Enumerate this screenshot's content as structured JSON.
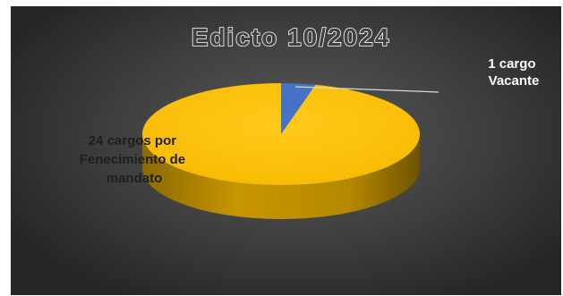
{
  "colors": {
    "background_dark": "#2b2b2b",
    "background_light": "#5a5a5a",
    "slice_major": "#ffc000",
    "slice_minor": "#4472c4",
    "title_fill": "#404040",
    "title_stroke": "#ffffff",
    "label_text": "#1e1e1e",
    "callout_text": "#ffffff"
  },
  "chart_data": {
    "type": "pie",
    "style": "3d",
    "title": "Edicto 10/2024",
    "slices": [
      {
        "label": "1 cargo Vacante",
        "label_lines": [
          "1 cargo",
          "Vacante"
        ],
        "value": 1,
        "color": "#4472c4"
      },
      {
        "label": "24 cargos por Fenecimiento de mandato",
        "label_lines": [
          "24 cargos por",
          "Fenecimiento de",
          "mandato"
        ],
        "value": 24,
        "color": "#ffc000"
      }
    ],
    "legend": "none"
  }
}
